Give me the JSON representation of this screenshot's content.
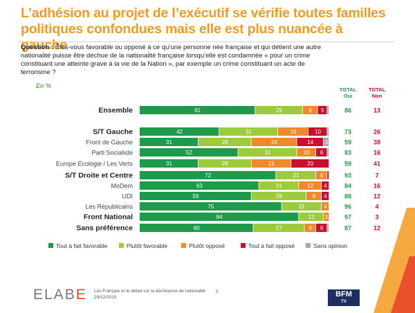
{
  "header": {
    "title_line1": "L’adhésion au projet de l’exécutif se vérifie toutes familles",
    "title_line2": "politiques confondues mais elle est plus nuancée à gauche",
    "question_label": "Question :",
    "question_text": "Êtes-vous favorable ou opposé à ce qu’une personne née française et qui détient une autre nationalité puisse être déchue de la nationalité française lorsqu’elle est condamnée « pour un crime constituant une atteinte grave à la vie de la Nation », par exemple un crime constituant un acte de terrorisme ?",
    "unit": "En %",
    "total_oui_label_1": "TOTAL",
    "total_oui_label_2": "Oui",
    "total_non_label_1": "TOTAL",
    "total_non_label_2": "Non"
  },
  "colors": {
    "tout_favorable": "#1e9a4b",
    "plutot_favorable": "#9ccb3b",
    "plutot_oppose": "#ef8a2c",
    "tout_oppose": "#c8102e",
    "sans_opinion": "#a8a8a8",
    "title": "#f39a1f",
    "total_oui": "#1e9a4b",
    "total_non": "#c8102e"
  },
  "chart_data": {
    "type": "bar",
    "orientation": "horizontal",
    "stacked": true,
    "xlim": [
      0,
      100
    ],
    "categories": [
      "Ensemble",
      "S/T Gauche",
      "Front de Gauche",
      "Parti Socialiste",
      "Europe Ecologie / Les Verts",
      "S/T Droite et Centre",
      "MoDem",
      "UDI",
      "Les Républicains",
      "Front National",
      "Sans préférence"
    ],
    "category_bold": [
      true,
      true,
      false,
      false,
      false,
      true,
      false,
      false,
      false,
      true,
      true
    ],
    "series": [
      {
        "name": "Tout à fait favorable",
        "values": [
          61,
          42,
          31,
          52,
          31,
          72,
          63,
          59,
          75,
          84,
          60
        ]
      },
      {
        "name": "Plutôt favorable",
        "values": [
          25,
          31,
          28,
          31,
          28,
          21,
          21,
          29,
          21,
          13,
          27
        ]
      },
      {
        "name": "Plutôt opposé",
        "values": [
          8,
          16,
          24,
          10,
          21,
          6,
          12,
          8,
          4,
          3,
          6
        ]
      },
      {
        "name": "Tout à fait opposé",
        "values": [
          5,
          10,
          14,
          6,
          20,
          1,
          4,
          4,
          0,
          0,
          6
        ]
      },
      {
        "name": "Sans opinion",
        "values": [
          1,
          1,
          3,
          1,
          0,
          0,
          0,
          0,
          0,
          0,
          1
        ]
      }
    ],
    "total_oui": [
      86,
      73,
      59,
      83,
      59,
      93,
      84,
      88,
      96,
      97,
      87
    ],
    "total_non": [
      13,
      26,
      38,
      16,
      41,
      7,
      16,
      12,
      4,
      3,
      12
    ],
    "legend_position": "bottom"
  },
  "footer": {
    "logo_part1": "ELAB",
    "logo_part2": "E",
    "text_line1": "Les Français et le débat sur la déchéance de nationalité",
    "text_line2": "29/12/2015",
    "page": "5",
    "broadcaster_line1": "BFM",
    "broadcaster_line2": "TV"
  }
}
